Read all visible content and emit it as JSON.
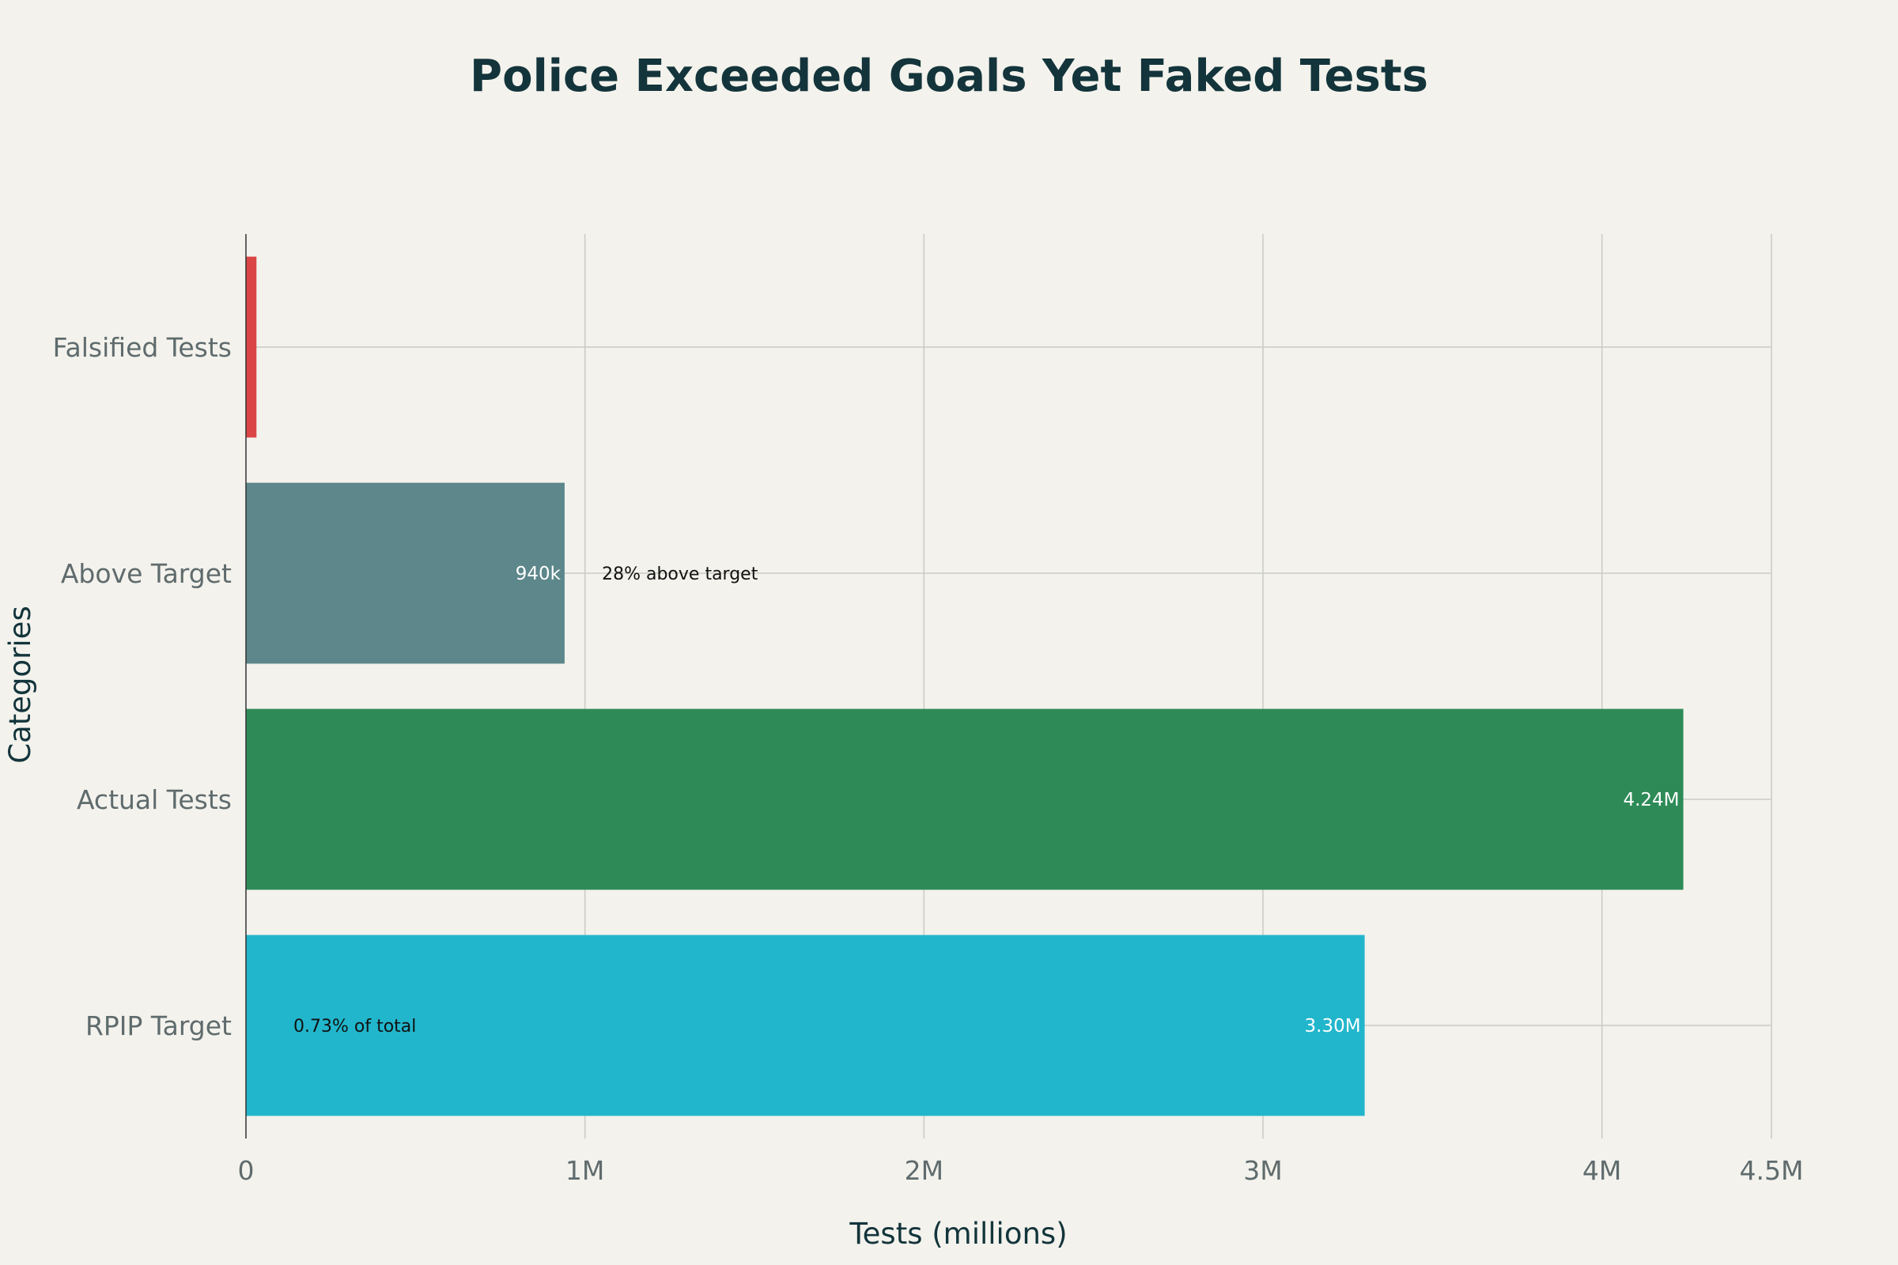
{
  "chart_data": {
    "type": "bar",
    "orientation": "horizontal",
    "title": "Police Exceeded Goals Yet Faked Tests",
    "xlabel": "Tests (millions)",
    "ylabel": "Categories",
    "xlim": [
      0,
      4500000
    ],
    "x_ticks": [
      {
        "value": 0,
        "label": "0"
      },
      {
        "value": 1000000,
        "label": "1M"
      },
      {
        "value": 2000000,
        "label": "2M"
      },
      {
        "value": 3000000,
        "label": "3M"
      },
      {
        "value": 4000000,
        "label": "4M"
      },
      {
        "value": 4500000,
        "label": "4.5M"
      }
    ],
    "grid": true,
    "bars": [
      {
        "category": "RPIP Target",
        "value": 3300000,
        "label": "3.30M",
        "color": "#21b6cc"
      },
      {
        "category": "Actual Tests",
        "value": 4240000,
        "label": "4.24M",
        "color": "#2e8b57"
      },
      {
        "category": "Above Target",
        "value": 940000,
        "label": "940k",
        "color": "#5d878b"
      },
      {
        "category": "Falsified Tests",
        "value": 31000,
        "label": "",
        "color": "#db4545"
      }
    ],
    "annotations": [
      {
        "text": "28% above target",
        "category": "Above Target",
        "x": 1050000
      },
      {
        "text": "0.73% of total",
        "category": "RPIP Target",
        "x": 140000
      }
    ]
  }
}
